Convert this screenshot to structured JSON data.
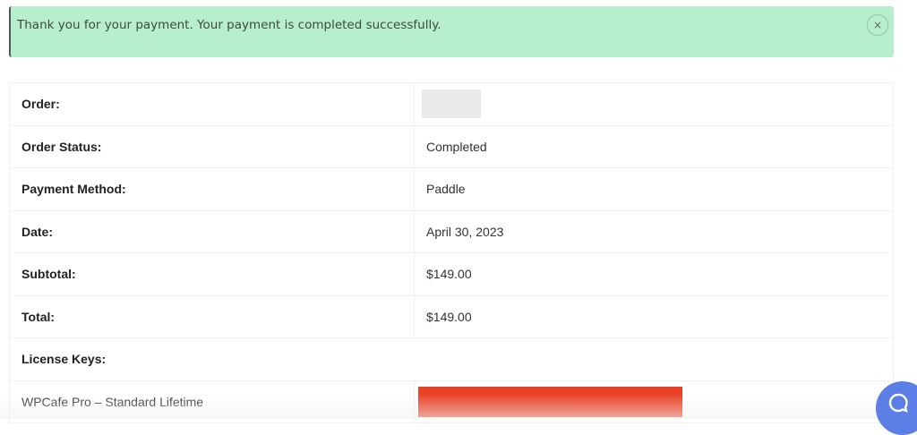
{
  "alert": {
    "message": "Thank you for your payment. Your payment is completed successfully.",
    "close_label": "×",
    "bg_color": "#b7eecb"
  },
  "order": {
    "rows": [
      {
        "label": "Order:",
        "value": ""
      },
      {
        "label": "Order Status:",
        "value": "Completed"
      },
      {
        "label": "Payment Method:",
        "value": "Paddle"
      },
      {
        "label": "Date:",
        "value": "April 30, 2023"
      },
      {
        "label": "Subtotal:",
        "value": "$149.00"
      },
      {
        "label": "Total:",
        "value": "$149.00"
      }
    ],
    "license_keys_label": "License Keys:",
    "license": {
      "product": "WPCafe Pro – Standard Lifetime",
      "redaction_color": "#e94227"
    }
  },
  "chat": {
    "icon": "chat-bubble-icon",
    "color": "#5b7fe6"
  }
}
